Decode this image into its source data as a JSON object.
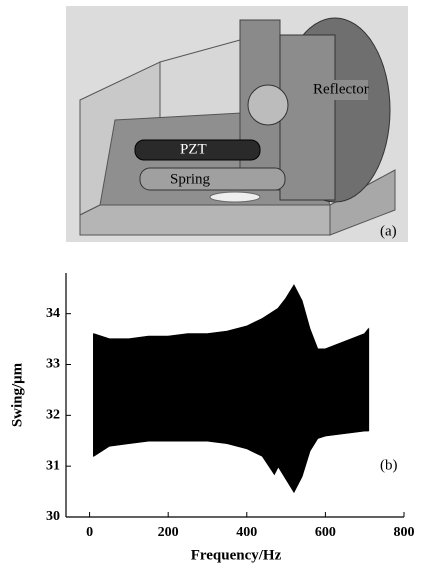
{
  "figure_a": {
    "labels": [
      "Reflector",
      "PZT",
      "Spring"
    ],
    "panel_label": "(a)"
  },
  "chart_data": {
    "type": "band",
    "x_label": "Frequency/Hz",
    "y_label": "Swing/μm",
    "panel_label": "(b)",
    "x": [
      10,
      50,
      100,
      150,
      200,
      250,
      300,
      350,
      400,
      440,
      470,
      480,
      500,
      520,
      540,
      560,
      580,
      600,
      650,
      700,
      710
    ],
    "series": [
      {
        "color": "#000000",
        "values": [
          33.6,
          33.5,
          33.5,
          33.55,
          33.55,
          33.6,
          33.6,
          33.65,
          33.75,
          33.9,
          34.05,
          34.1,
          34.3,
          34.55,
          34.25,
          33.7,
          33.3,
          33.3,
          33.45,
          33.6,
          33.7
        ]
      },
      {
        "color": "#000000",
        "values": [
          31.2,
          31.4,
          31.45,
          31.5,
          31.5,
          31.5,
          31.5,
          31.45,
          31.35,
          31.2,
          30.85,
          31.0,
          30.75,
          30.5,
          30.8,
          31.3,
          31.55,
          31.6,
          31.65,
          31.7,
          31.7
        ]
      }
    ],
    "xlim": [
      -60,
      800
    ],
    "ylim": [
      30,
      34.8
    ],
    "xticks": [
      0,
      200,
      400,
      600,
      800
    ],
    "yticks": [
      30,
      31,
      32,
      33,
      34
    ]
  }
}
